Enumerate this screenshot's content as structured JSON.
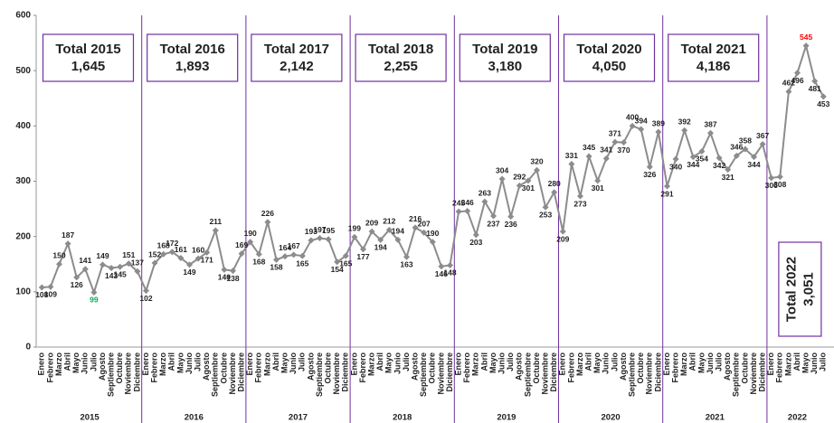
{
  "chart_data": {
    "type": "line",
    "ylim": [
      0,
      600
    ],
    "yticks": [
      0,
      100,
      200,
      300,
      400,
      500,
      600
    ],
    "line_color": "#8c8c8c",
    "separator_color": "#7030a0",
    "min_label_color": "#00b050",
    "max_label_color": "#ff0000",
    "years": [
      {
        "name": "2015",
        "total_title": "Total 2015",
        "total": "1,645",
        "months": [
          "Enero",
          "Febrero",
          "Marzo",
          "Abril",
          "Mayo",
          "Junio",
          "Julio",
          "Agosto",
          "Septiembre",
          "Octubre",
          "Noviembre",
          "Diciembre"
        ],
        "values": [
          108,
          109,
          150,
          187,
          126,
          141,
          99,
          149,
          143,
          145,
          151,
          137
        ]
      },
      {
        "name": "2016",
        "total_title": "Total 2016",
        "total": "1,893",
        "months": [
          "Enero",
          "Febrero",
          "Marzo",
          "Abril",
          "Mayo",
          "Junio",
          "Julio",
          "Agosto",
          "Septiembre",
          "Octubre",
          "Noviembre",
          "Diciembre"
        ],
        "values": [
          102,
          152,
          168,
          172,
          161,
          149,
          160,
          171,
          211,
          140,
          138,
          169
        ]
      },
      {
        "name": "2017",
        "total_title": "Total 2017",
        "total": "2,142",
        "months": [
          "Enero",
          "Febrero",
          "Marzo",
          "Abril",
          "Mayo",
          "Junio",
          "Julio",
          "Agosto",
          "Septiembre",
          "Octubre",
          "Noviembre",
          "Diciembre"
        ],
        "values": [
          190,
          168,
          226,
          158,
          164,
          167,
          165,
          193,
          197,
          195,
          154,
          165
        ]
      },
      {
        "name": "2018",
        "total_title": "Total 2018",
        "total": "2,255",
        "months": [
          "Enero",
          "Febrero",
          "Marzo",
          "Abril",
          "Mayo",
          "Junio",
          "Julio",
          "Agosto",
          "Septiembre",
          "Octubre",
          "Noviembre",
          "Diciembre"
        ],
        "values": [
          199,
          177,
          209,
          194,
          212,
          194,
          163,
          216,
          207,
          190,
          146,
          148
        ]
      },
      {
        "name": "2019",
        "total_title": "Total 2019",
        "total": "3,180",
        "months": [
          "Enero",
          "Febrero",
          "Marzo",
          "Abril",
          "Mayo",
          "Junio",
          "Julio",
          "Agosto",
          "Septiembre",
          "Octubre",
          "Noviembre",
          "Diciembre"
        ],
        "values": [
          245,
          246,
          203,
          263,
          237,
          304,
          236,
          292,
          301,
          320,
          253,
          280
        ]
      },
      {
        "name": "2020",
        "total_title": "Total 2020",
        "total": "4,050",
        "months": [
          "Enero",
          "Febrero",
          "Marzo",
          "Abril",
          "Mayo",
          "Junio",
          "Julio",
          "Agosto",
          "Septiembre",
          "Octubre",
          "Noviembre",
          "Diciembre"
        ],
        "values": [
          209,
          331,
          273,
          345,
          301,
          341,
          371,
          370,
          400,
          394,
          326,
          389
        ]
      },
      {
        "name": "2021",
        "total_title": "Total 2021",
        "total": "4,186",
        "months": [
          "Enero",
          "Febrero",
          "Marzo",
          "Abril",
          "Mayo",
          "Junio",
          "Julio",
          "Agosto",
          "Septiembre",
          "Octubre",
          "Noviembre",
          "Diciembre"
        ],
        "values": [
          291,
          340,
          392,
          344,
          354,
          387,
          342,
          321,
          346,
          358,
          344,
          367
        ]
      },
      {
        "name": "2022",
        "total_title": "Total 2022",
        "total": "3,051",
        "vertical_total": true,
        "months": [
          "Enero",
          "Febrero",
          "Marzo",
          "Abril",
          "Mayo",
          "Junio",
          "Julio"
        ],
        "values": [
          306,
          308,
          462,
          496,
          545,
          481,
          453
        ]
      }
    ]
  }
}
